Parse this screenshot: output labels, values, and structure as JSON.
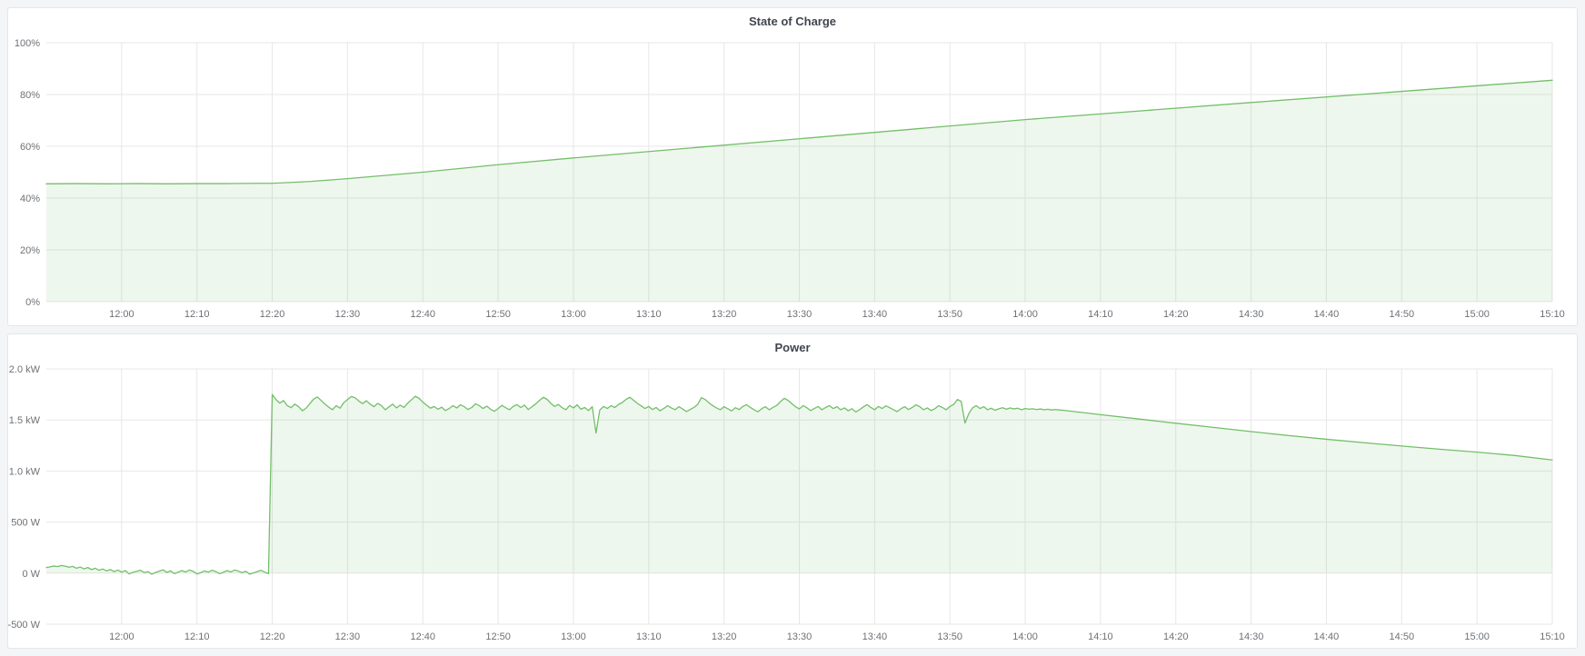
{
  "page": {
    "background": "#f4f5f6",
    "panel_background": "#ffffff",
    "grid_color": "#e7e7e7",
    "axis_text_color": "#6e7176"
  },
  "chart_data": [
    {
      "type": "area",
      "title": "State of Charge",
      "xlabel": "",
      "ylabel": "",
      "unit": "%",
      "x_range_minutes": [
        0,
        200
      ],
      "y_range": [
        0,
        100
      ],
      "baseline": 0,
      "grid": true,
      "legend": "none",
      "x_ticks": [
        [
          10,
          "12:00"
        ],
        [
          20,
          "12:10"
        ],
        [
          30,
          "12:20"
        ],
        [
          40,
          "12:30"
        ],
        [
          50,
          "12:40"
        ],
        [
          60,
          "12:50"
        ],
        [
          70,
          "13:00"
        ],
        [
          80,
          "13:10"
        ],
        [
          90,
          "13:20"
        ],
        [
          100,
          "13:30"
        ],
        [
          110,
          "13:40"
        ],
        [
          120,
          "13:50"
        ],
        [
          130,
          "14:00"
        ],
        [
          140,
          "14:10"
        ],
        [
          150,
          "14:20"
        ],
        [
          160,
          "14:30"
        ],
        [
          170,
          "14:40"
        ],
        [
          180,
          "14:50"
        ],
        [
          190,
          "15:00"
        ],
        [
          200,
          "15:10"
        ]
      ],
      "y_ticks": [
        [
          0,
          "0%"
        ],
        [
          20,
          "20%"
        ],
        [
          40,
          "40%"
        ],
        [
          60,
          "60%"
        ],
        [
          80,
          "80%"
        ],
        [
          100,
          "100%"
        ]
      ],
      "series": [
        {
          "name": "state-of-charge",
          "color": "#73bf69",
          "fill_opacity": 0.12,
          "segments": [
            {
              "points": [
                [
                  0,
                  45.5
                ],
                [
                  4,
                  45.6
                ],
                [
                  8,
                  45.5
                ],
                [
                  12,
                  45.6
                ],
                [
                  16,
                  45.5
                ],
                [
                  20,
                  45.6
                ],
                [
                  24,
                  45.6
                ],
                [
                  28,
                  45.7
                ],
                [
                  30,
                  45.7
                ],
                [
                  35,
                  46.4
                ],
                [
                  40,
                  47.5
                ],
                [
                  50,
                  50.0
                ],
                [
                  60,
                  52.9
                ],
                [
                  70,
                  55.5
                ],
                [
                  85,
                  59.2
                ],
                [
                  100,
                  62.9
                ],
                [
                  115,
                  66.6
                ],
                [
                  130,
                  70.3
                ],
                [
                  145,
                  73.6
                ],
                [
                  160,
                  76.9
                ],
                [
                  180,
                  81.2
                ],
                [
                  200,
                  85.5
                ]
              ]
            }
          ]
        }
      ]
    },
    {
      "type": "area",
      "title": "Power",
      "xlabel": "",
      "ylabel": "",
      "unit": "W",
      "x_range_minutes": [
        0,
        200
      ],
      "y_range": [
        -500,
        2000
      ],
      "baseline": 0,
      "grid": true,
      "legend": "none",
      "x_ticks": [
        [
          10,
          "12:00"
        ],
        [
          20,
          "12:10"
        ],
        [
          30,
          "12:20"
        ],
        [
          40,
          "12:30"
        ],
        [
          50,
          "12:40"
        ],
        [
          60,
          "12:50"
        ],
        [
          70,
          "13:00"
        ],
        [
          80,
          "13:10"
        ],
        [
          90,
          "13:20"
        ],
        [
          100,
          "13:30"
        ],
        [
          110,
          "13:40"
        ],
        [
          120,
          "13:50"
        ],
        [
          130,
          "14:00"
        ],
        [
          140,
          "14:10"
        ],
        [
          150,
          "14:20"
        ],
        [
          160,
          "14:30"
        ],
        [
          170,
          "14:40"
        ],
        [
          180,
          "14:50"
        ],
        [
          190,
          "15:00"
        ],
        [
          200,
          "15:10"
        ]
      ],
      "y_ticks": [
        [
          -500,
          "-500 W"
        ],
        [
          0,
          "0 W"
        ],
        [
          500,
          "500 W"
        ],
        [
          1000,
          "1.0 kW"
        ],
        [
          1500,
          "1.5 kW"
        ],
        [
          2000,
          "2.0 kW"
        ]
      ],
      "series": [
        {
          "name": "power",
          "color": "#73bf69",
          "fill_opacity": 0.12,
          "segments": [
            {
              "t0": 0,
              "dt": 0.5,
              "values": [
                55,
                62,
                70,
                64,
                75,
                68,
                58,
                66,
                48,
                60,
                42,
                55,
                35,
                48,
                28,
                40,
                22,
                35,
                15,
                30,
                10,
                25,
                -8,
                8,
                18,
                28,
                5,
                15,
                -10,
                6,
                20,
                32,
                8,
                22,
                -5,
                10,
                25,
                12,
                30,
                18,
                -8,
                5,
                22,
                10,
                28,
                15,
                -5,
                8,
                25,
                12,
                30,
                20,
                5,
                18,
                -10,
                2,
                15,
                28,
                10,
                -5
              ]
            },
            {
              "t0": 30,
              "dt": 0.5,
              "values": [
                1748,
                1700,
                1665,
                1690,
                1640,
                1620,
                1655,
                1630,
                1590,
                1615,
                1660,
                1705,
                1725,
                1690,
                1655,
                1625,
                1600,
                1640,
                1615,
                1670,
                1700,
                1730,
                1718,
                1685,
                1660,
                1688,
                1655,
                1630,
                1662,
                1640,
                1600,
                1628,
                1655,
                1618,
                1645,
                1622,
                1665,
                1698,
                1732,
                1712,
                1675,
                1645,
                1615,
                1632,
                1605,
                1625,
                1592,
                1612,
                1640,
                1618,
                1648,
                1630,
                1602,
                1622,
                1658,
                1640,
                1612,
                1635,
                1605,
                1585,
                1612,
                1642,
                1620,
                1600,
                1632,
                1650,
                1622,
                1645,
                1602,
                1630,
                1658,
                1692,
                1722,
                1702,
                1662,
                1632,
                1652,
                1620,
                1600,
                1642,
                1618,
                1648,
                1605,
                1622,
                1592,
                1630,
                1372,
                1598,
                1632,
                1612,
                1640,
                1622,
                1652,
                1672,
                1702,
                1722,
                1692,
                1662,
                1638,
                1612,
                1632,
                1602,
                1622,
                1590,
                1612,
                1640,
                1618,
                1600,
                1630,
                1608,
                1582,
                1602,
                1622,
                1652,
                1718,
                1700,
                1668,
                1640,
                1618,
                1600,
                1630,
                1610,
                1588,
                1620,
                1602,
                1632,
                1650,
                1622,
                1600,
                1580,
                1610,
                1630,
                1600,
                1622,
                1642,
                1680,
                1712,
                1692,
                1660,
                1630,
                1608,
                1640,
                1620,
                1592,
                1612,
                1632,
                1600,
                1622,
                1640,
                1612,
                1630,
                1600,
                1618,
                1590,
                1610,
                1578,
                1600,
                1628,
                1650,
                1622,
                1600,
                1632,
                1612,
                1638,
                1620,
                1600,
                1582,
                1610,
                1630,
                1602,
                1622,
                1648,
                1630,
                1600,
                1618,
                1592,
                1610,
                1640,
                1622,
                1600,
                1632,
                1652,
                1700,
                1682,
                1470,
                1560,
                1618,
                1640,
                1612,
                1630
              ]
            },
            {
              "t0": 125,
              "dt": 0.5,
              "values": [
                1600,
                1615,
                1595,
                1610,
                1620,
                1605,
                1618,
                1608,
                1615,
                1600,
                1612,
                1605,
                1610,
                1602,
                1608,
                1600,
                1605,
                1598,
                1602,
                1598
              ]
            },
            {
              "points": [
                [
                  135,
                  1595
                ],
                [
                  140,
                  1552
                ],
                [
                  145,
                  1510
                ],
                [
                  150,
                  1468
                ],
                [
                  155,
                  1427
                ],
                [
                  160,
                  1386
                ],
                [
                  165,
                  1347
                ],
                [
                  170,
                  1311
                ],
                [
                  175,
                  1277
                ],
                [
                  180,
                  1245
                ],
                [
                  185,
                  1214
                ],
                [
                  190,
                  1185
                ],
                [
                  195,
                  1152
                ],
                [
                  200,
                  1108
                ]
              ]
            }
          ]
        }
      ]
    }
  ]
}
